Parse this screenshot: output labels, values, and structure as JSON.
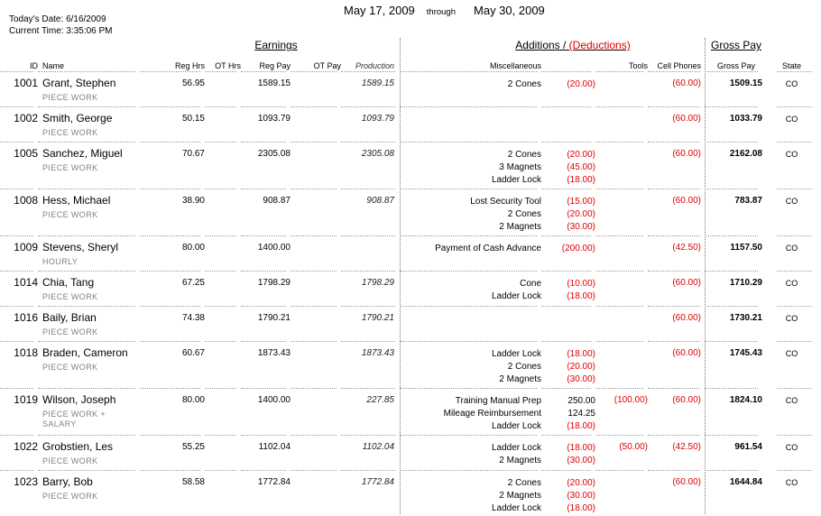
{
  "report": {
    "period_start": "May 17, 2009",
    "period_through_label": "through",
    "period_end": "May 30, 2009",
    "todays_date_label": "Today's Date:",
    "todays_date": "6/16/2009",
    "current_time_label": "Current Time:",
    "current_time": "3:35:06 PM"
  },
  "groups": {
    "earnings": "Earnings",
    "additions_part": "Additions / ",
    "deductions_part": "(Deductions)",
    "gross_pay": "Gross Pay"
  },
  "columns": {
    "id": "ID",
    "name": "Name",
    "reg_hrs": "Reg Hrs",
    "ot_hrs": "OT Hrs",
    "reg_pay": "Reg Pay",
    "ot_pay": "OT Pay",
    "production": "Production",
    "miscellaneous": "Miscellaneous",
    "tools": "Tools",
    "cell_phones": "Cell Phones",
    "gross_pay": "Gross Pay",
    "state": "State"
  },
  "colors": {
    "deduction_red": "#dd0000",
    "pay_type_gray": "#818181"
  },
  "rows": [
    {
      "id": "1001",
      "name": "Grant, Stephen",
      "type": "PIECE WORK",
      "reg_hrs": "56.95",
      "ot_hrs": "",
      "reg_pay": "1589.15",
      "ot_pay": "",
      "production": "1589.15",
      "misc": [
        {
          "label": "2 Cones",
          "amount": "(20.00)",
          "negative": true
        }
      ],
      "tools": "",
      "cell_phones": "(60.00)",
      "gross_pay": "1509.15",
      "state": "CO"
    },
    {
      "id": "1002",
      "name": "Smith, George",
      "type": "PIECE WORK",
      "reg_hrs": "50.15",
      "ot_hrs": "",
      "reg_pay": "1093.79",
      "ot_pay": "",
      "production": "1093.79",
      "misc": [],
      "tools": "",
      "cell_phones": "(60.00)",
      "gross_pay": "1033.79",
      "state": "CO"
    },
    {
      "id": "1005",
      "name": "Sanchez, Miguel",
      "type": "PIECE WORK",
      "reg_hrs": "70.67",
      "ot_hrs": "",
      "reg_pay": "2305.08",
      "ot_pay": "",
      "production": "2305.08",
      "misc": [
        {
          "label": "2 Cones",
          "amount": "(20.00)",
          "negative": true
        },
        {
          "label": "3 Magnets",
          "amount": "(45.00)",
          "negative": true
        },
        {
          "label": "Ladder Lock",
          "amount": "(18.00)",
          "negative": true
        }
      ],
      "tools": "",
      "cell_phones": "(60.00)",
      "gross_pay": "2162.08",
      "state": "CO"
    },
    {
      "id": "1008",
      "name": "Hess, Michael",
      "type": "PIECE WORK",
      "reg_hrs": "38.90",
      "ot_hrs": "",
      "reg_pay": "908.87",
      "ot_pay": "",
      "production": "908.87",
      "misc": [
        {
          "label": "Lost Security Tool",
          "amount": "(15.00)",
          "negative": true
        },
        {
          "label": "2 Cones",
          "amount": "(20.00)",
          "negative": true
        },
        {
          "label": "2 Magnets",
          "amount": "(30.00)",
          "negative": true
        }
      ],
      "tools": "",
      "cell_phones": "(60.00)",
      "gross_pay": "783.87",
      "state": "CO"
    },
    {
      "id": "1009",
      "name": "Stevens, Sheryl",
      "type": "HOURLY",
      "reg_hrs": "80.00",
      "ot_hrs": "",
      "reg_pay": "1400.00",
      "ot_pay": "",
      "production": "",
      "misc": [
        {
          "label": "Payment of Cash Advance",
          "amount": "(200.00)",
          "negative": true
        }
      ],
      "tools": "",
      "cell_phones": "(42.50)",
      "gross_pay": "1157.50",
      "state": "CO"
    },
    {
      "id": "1014",
      "name": "Chia, Tang",
      "type": "PIECE WORK",
      "reg_hrs": "67.25",
      "ot_hrs": "",
      "reg_pay": "1798.29",
      "ot_pay": "",
      "production": "1798.29",
      "misc": [
        {
          "label": "Cone",
          "amount": "(10.00)",
          "negative": true
        },
        {
          "label": "Ladder Lock",
          "amount": "(18.00)",
          "negative": true
        }
      ],
      "tools": "",
      "cell_phones": "(60.00)",
      "gross_pay": "1710.29",
      "state": "CO"
    },
    {
      "id": "1016",
      "name": "Baily, Brian",
      "type": "PIECE WORK",
      "reg_hrs": "74.38",
      "ot_hrs": "",
      "reg_pay": "1790.21",
      "ot_pay": "",
      "production": "1790.21",
      "misc": [],
      "tools": "",
      "cell_phones": "(60.00)",
      "gross_pay": "1730.21",
      "state": "CO"
    },
    {
      "id": "1018",
      "name": "Braden, Cameron",
      "type": "PIECE WORK",
      "reg_hrs": "60.67",
      "ot_hrs": "",
      "reg_pay": "1873.43",
      "ot_pay": "",
      "production": "1873.43",
      "misc": [
        {
          "label": "Ladder Lock",
          "amount": "(18.00)",
          "negative": true
        },
        {
          "label": "2 Cones",
          "amount": "(20.00)",
          "negative": true
        },
        {
          "label": "2 Magnets",
          "amount": "(30.00)",
          "negative": true
        }
      ],
      "tools": "",
      "cell_phones": "(60.00)",
      "gross_pay": "1745.43",
      "state": "CO"
    },
    {
      "id": "1019",
      "name": "Wilson, Joseph",
      "type": "PIECE WORK + SALARY",
      "reg_hrs": "80.00",
      "ot_hrs": "",
      "reg_pay": "1400.00",
      "ot_pay": "",
      "production": "227.85",
      "misc": [
        {
          "label": "Training Manual Prep",
          "amount": "250.00",
          "negative": false
        },
        {
          "label": "Mileage Reimbursement",
          "amount": "124.25",
          "negative": false
        },
        {
          "label": "Ladder Lock",
          "amount": "(18.00)",
          "negative": true
        }
      ],
      "tools": "(100.00)",
      "cell_phones": "(60.00)",
      "gross_pay": "1824.10",
      "state": "CO"
    },
    {
      "id": "1022",
      "name": "Grobstien, Les",
      "type": "PIECE WORK",
      "reg_hrs": "55.25",
      "ot_hrs": "",
      "reg_pay": "1102.04",
      "ot_pay": "",
      "production": "1102.04",
      "misc": [
        {
          "label": "Ladder Lock",
          "amount": "(18.00)",
          "negative": true
        },
        {
          "label": "2 Magnets",
          "amount": "(30.00)",
          "negative": true
        }
      ],
      "tools": "(50.00)",
      "cell_phones": "(42.50)",
      "gross_pay": "961.54",
      "state": "CO"
    },
    {
      "id": "1023",
      "name": "Barry, Bob",
      "type": "PIECE WORK",
      "reg_hrs": "58.58",
      "ot_hrs": "",
      "reg_pay": "1772.84",
      "ot_pay": "",
      "production": "1772.84",
      "misc": [
        {
          "label": "2 Cones",
          "amount": "(20.00)",
          "negative": true
        },
        {
          "label": "2 Magnets",
          "amount": "(30.00)",
          "negative": true
        },
        {
          "label": "Ladder Lock",
          "amount": "(18.00)",
          "negative": true
        }
      ],
      "tools": "",
      "cell_phones": "(60.00)",
      "gross_pay": "1644.84",
      "state": "CO"
    }
  ]
}
